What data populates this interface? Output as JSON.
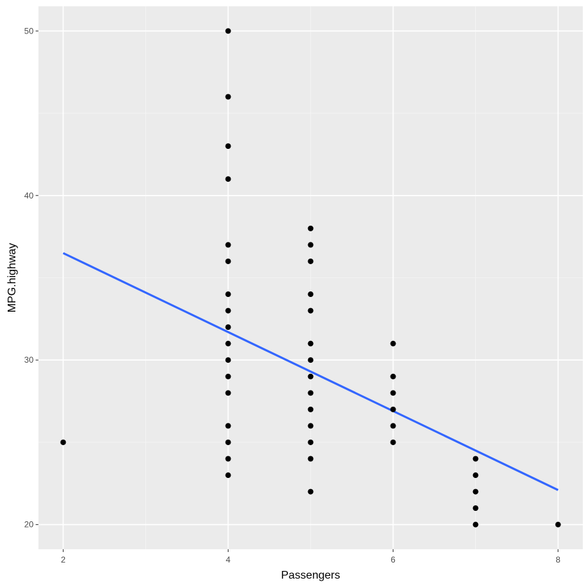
{
  "chart_data": {
    "type": "scatter",
    "xlabel": "Passengers",
    "ylabel": "MPG.highway",
    "xlim": [
      1.7,
      8.3
    ],
    "ylim": [
      18.5,
      51.5
    ],
    "x_ticks": [
      2,
      4,
      6,
      8
    ],
    "x_minor_ticks": [
      3,
      5,
      7
    ],
    "y_ticks": [
      20,
      30,
      40,
      50
    ],
    "y_minor_ticks": [
      25,
      35,
      45
    ],
    "grid": true,
    "points": [
      {
        "x": 2,
        "y": 25
      },
      {
        "x": 4,
        "y": 50
      },
      {
        "x": 4,
        "y": 46
      },
      {
        "x": 4,
        "y": 43
      },
      {
        "x": 4,
        "y": 41
      },
      {
        "x": 4,
        "y": 37
      },
      {
        "x": 4,
        "y": 36
      },
      {
        "x": 4,
        "y": 34
      },
      {
        "x": 4,
        "y": 33
      },
      {
        "x": 4,
        "y": 32
      },
      {
        "x": 4,
        "y": 31
      },
      {
        "x": 4,
        "y": 30
      },
      {
        "x": 4,
        "y": 29
      },
      {
        "x": 4,
        "y": 28
      },
      {
        "x": 4,
        "y": 26
      },
      {
        "x": 4,
        "y": 25
      },
      {
        "x": 4,
        "y": 24
      },
      {
        "x": 4,
        "y": 23
      },
      {
        "x": 5,
        "y": 38
      },
      {
        "x": 5,
        "y": 37
      },
      {
        "x": 5,
        "y": 36
      },
      {
        "x": 5,
        "y": 34
      },
      {
        "x": 5,
        "y": 33
      },
      {
        "x": 5,
        "y": 31
      },
      {
        "x": 5,
        "y": 30
      },
      {
        "x": 5,
        "y": 29
      },
      {
        "x": 5,
        "y": 28
      },
      {
        "x": 5,
        "y": 27
      },
      {
        "x": 5,
        "y": 26
      },
      {
        "x": 5,
        "y": 25
      },
      {
        "x": 5,
        "y": 24
      },
      {
        "x": 5,
        "y": 22
      },
      {
        "x": 6,
        "y": 31
      },
      {
        "x": 6,
        "y": 29
      },
      {
        "x": 6,
        "y": 28
      },
      {
        "x": 6,
        "y": 27
      },
      {
        "x": 6,
        "y": 26
      },
      {
        "x": 6,
        "y": 25
      },
      {
        "x": 7,
        "y": 24
      },
      {
        "x": 7,
        "y": 23
      },
      {
        "x": 7,
        "y": 22
      },
      {
        "x": 7,
        "y": 21
      },
      {
        "x": 7,
        "y": 20
      },
      {
        "x": 8,
        "y": 20
      }
    ],
    "fit_line": {
      "x": [
        2,
        8
      ],
      "y": [
        36.5,
        22.1
      ]
    },
    "colors": {
      "panel": "#ebebeb",
      "grid_major": "#ffffff",
      "grid_minor": "#f5f5f5",
      "point": "#000000",
      "fit_line": "#3366ff",
      "tick_label": "#4d4d4d",
      "tick_mark": "#333333"
    }
  }
}
